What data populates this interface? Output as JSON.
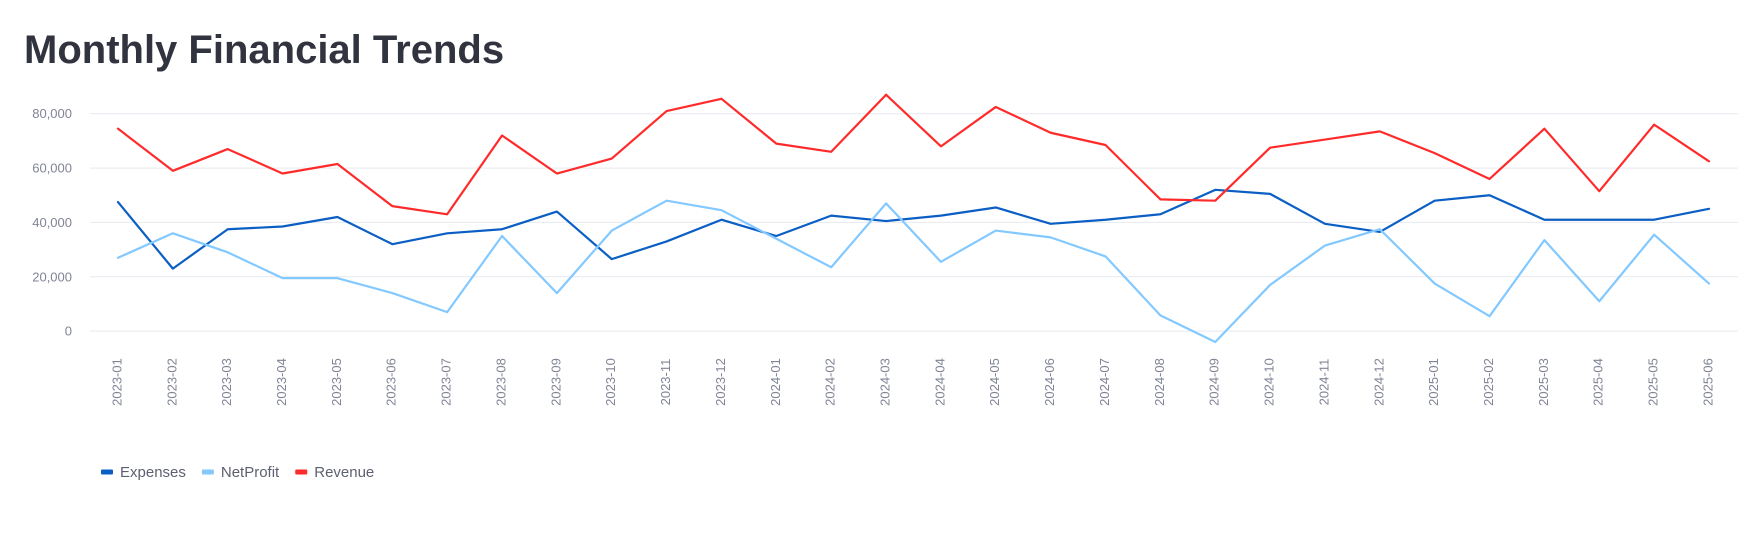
{
  "title": "Monthly Financial Trends",
  "chart_data": {
    "type": "line",
    "categories": [
      "2023-01",
      "2023-02",
      "2023-03",
      "2023-04",
      "2023-05",
      "2023-06",
      "2023-07",
      "2023-08",
      "2023-09",
      "2023-10",
      "2023-11",
      "2023-12",
      "2024-01",
      "2024-02",
      "2024-03",
      "2024-04",
      "2024-05",
      "2024-06",
      "2024-07",
      "2024-08",
      "2024-09",
      "2024-10",
      "2024-11",
      "2024-12",
      "2025-01",
      "2025-02",
      "2025-03",
      "2025-04",
      "2025-05",
      "2025-06"
    ],
    "series": [
      {
        "name": "Expenses",
        "color": "#0b5fc4",
        "values": [
          47500,
          23000,
          37500,
          38500,
          42000,
          32000,
          36000,
          37500,
          44000,
          26500,
          33000,
          41000,
          35000,
          42500,
          40500,
          42500,
          45500,
          39500,
          41000,
          43000,
          52000,
          50500,
          39500,
          36500,
          48000,
          50000,
          41000,
          41000,
          41000,
          45000
        ]
      },
      {
        "name": "NetProfit",
        "color": "#83c9ff",
        "values": [
          27000,
          36000,
          29000,
          19500,
          19500,
          14000,
          7000,
          35000,
          14000,
          37000,
          48000,
          44500,
          34000,
          23500,
          47000,
          25500,
          37000,
          34500,
          27500,
          5800,
          -4000,
          17000,
          31500,
          37500,
          17500,
          5500,
          33500,
          11000,
          35500,
          17500
        ]
      },
      {
        "name": "Revenue",
        "color": "#ff2b2b",
        "values": [
          74500,
          59000,
          67000,
          58000,
          61500,
          46000,
          43000,
          72000,
          58000,
          63500,
          81000,
          85500,
          69000,
          66000,
          87000,
          68000,
          82500,
          73000,
          68500,
          48500,
          48000,
          67500,
          70500,
          73500,
          65500,
          56000,
          74500,
          51500,
          76000,
          62500
        ]
      }
    ],
    "yticks": [
      0,
      20000,
      40000,
      60000,
      80000
    ],
    "ytick_labels": [
      "0",
      "20,000",
      "40,000",
      "60,000",
      "80,000"
    ],
    "ylim": [
      -4000,
      88000
    ],
    "xlabel": "",
    "ylabel": "",
    "grid": true,
    "legend_position": "bottom-left"
  }
}
